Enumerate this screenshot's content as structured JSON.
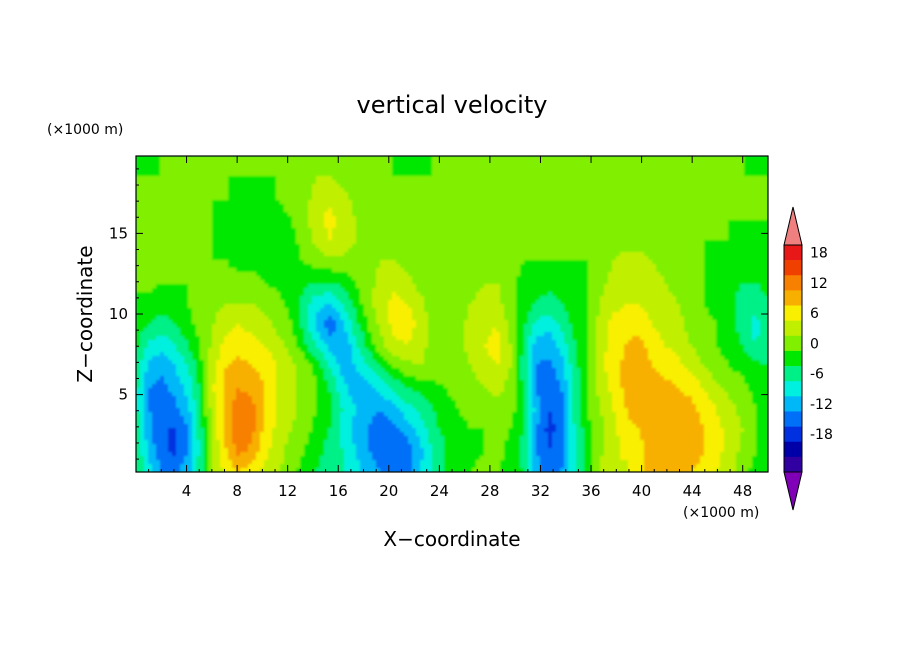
{
  "chart_data": {
    "type": "heatmap",
    "title": "vertical velocity",
    "xlabel": "X−coordinate",
    "ylabel": "Z−coordinate",
    "x_unit": "(×1000 m)",
    "y_unit": "(×1000 m)",
    "xlim": [
      0,
      50
    ],
    "ylim": [
      0.2,
      19.8
    ],
    "x_ticks": [
      4,
      8,
      12,
      16,
      20,
      24,
      28,
      32,
      36,
      40,
      44,
      48
    ],
    "y_ticks": [
      5,
      10,
      15
    ],
    "colorbar": {
      "labels": [
        18,
        12,
        6,
        0,
        -6,
        -12,
        -18
      ],
      "levels": [
        21,
        18,
        15,
        12,
        9,
        6,
        3,
        0,
        -3,
        -6,
        -9,
        -12,
        -15,
        -18,
        -21
      ],
      "colors": [
        "#f08080",
        "#e81818",
        "#f04000",
        "#f88000",
        "#f8b000",
        "#f8f000",
        "#c0f000",
        "#80f000",
        "#00e800",
        "#00f088",
        "#00f0e0",
        "#00b8f8",
        "#0070f8",
        "#0030e0",
        "#0000a8",
        "#3000a0",
        "#8000b8"
      ],
      "extend": "both"
    },
    "field": [
      [
        -2,
        -8,
        -12,
        -13,
        -10,
        -4,
        3,
        7,
        9,
        7,
        5,
        3,
        2,
        -2,
        -3,
        -4,
        -6,
        -8,
        -10,
        -12,
        -15,
        -13,
        -9,
        -6,
        -3,
        -2,
        0,
        1,
        0,
        -1,
        -3,
        -10,
        -14,
        -12,
        -6,
        -1,
        4,
        6,
        5,
        8,
        10,
        11,
        10,
        9,
        8,
        6,
        4,
        1,
        -1,
        -3
      ],
      [
        -3,
        -10,
        -14,
        -16,
        -12,
        -5,
        4,
        9,
        13,
        11,
        7,
        4,
        2,
        0,
        -2,
        -4,
        -6,
        -9,
        -12,
        -14,
        -15,
        -14,
        -10,
        -6,
        -3,
        -2,
        -1,
        0,
        1,
        -1,
        -4,
        -12,
        -15,
        -13,
        -6,
        -1,
        2,
        5,
        7,
        8,
        10,
        11,
        12,
        11,
        9,
        7,
        5,
        2,
        0,
        -2
      ],
      [
        -4,
        -11,
        -15,
        -15,
        -12,
        -4,
        4,
        10,
        15,
        13,
        8,
        5,
        3,
        1,
        -1,
        -3,
        -7,
        -10,
        -12,
        -14,
        -13,
        -11,
        -8,
        -4,
        -2,
        -1,
        0,
        0,
        1,
        0,
        -3,
        -12,
        -16,
        -14,
        -6,
        -1,
        2,
        5,
        8,
        9,
        11,
        12,
        12,
        11,
        9,
        7,
        5,
        3,
        0,
        -2
      ],
      [
        -5,
        -12,
        -14,
        -13,
        -10,
        -3,
        5,
        11,
        14,
        13,
        9,
        6,
        4,
        2,
        0,
        -2,
        -6,
        -9,
        -11,
        -12,
        -10,
        -7,
        -5,
        -3,
        -1,
        0,
        1,
        1,
        2,
        1,
        -2,
        -10,
        -15,
        -13,
        -5,
        0,
        3,
        6,
        9,
        11,
        12,
        12,
        11,
        10,
        8,
        6,
        4,
        2,
        0,
        -1
      ],
      [
        -5,
        -12,
        -13,
        -11,
        -8,
        -2,
        6,
        10,
        12,
        11,
        9,
        6,
        4,
        2,
        0,
        -3,
        -8,
        -11,
        -10,
        -8,
        -5,
        -3,
        -2,
        -1,
        0,
        1,
        2,
        3,
        4,
        2,
        -3,
        -12,
        -15,
        -12,
        -5,
        0,
        4,
        7,
        10,
        12,
        11,
        10,
        9,
        8,
        6,
        4,
        2,
        1,
        -1,
        -2
      ],
      [
        -4,
        -10,
        -11,
        -9,
        -6,
        -1,
        5,
        9,
        10,
        9,
        8,
        6,
        4,
        2,
        -1,
        -6,
        -10,
        -9,
        -6,
        -3,
        0,
        2,
        3,
        2,
        1,
        2,
        3,
        5,
        6,
        3,
        -4,
        -12,
        -13,
        -10,
        -4,
        0,
        5,
        8,
        10,
        11,
        9,
        8,
        7,
        5,
        3,
        1,
        0,
        -1,
        -2,
        -3
      ],
      [
        -2,
        -7,
        -8,
        -6,
        -3,
        0,
        4,
        7,
        8,
        7,
        6,
        4,
        2,
        -2,
        -6,
        -10,
        -12,
        -7,
        -2,
        2,
        5,
        6,
        4,
        2,
        1,
        2,
        4,
        6,
        7,
        3,
        -3,
        -10,
        -11,
        -8,
        -3,
        0,
        5,
        7,
        9,
        10,
        8,
        6,
        5,
        3,
        2,
        0,
        -1,
        -3,
        -6,
        -4
      ],
      [
        -1,
        -3,
        -4,
        -3,
        -1,
        1,
        3,
        5,
        6,
        5,
        4,
        2,
        0,
        -4,
        -10,
        -14,
        -10,
        -4,
        0,
        4,
        7,
        8,
        5,
        2,
        1,
        2,
        4,
        5,
        6,
        2,
        -2,
        -7,
        -8,
        -5,
        -2,
        0,
        4,
        7,
        8,
        8,
        6,
        5,
        4,
        2,
        1,
        0,
        -2,
        -4,
        -7,
        -5
      ],
      [
        0,
        -1,
        -2,
        -1,
        0,
        1,
        2,
        3,
        3,
        3,
        2,
        1,
        -1,
        -4,
        -8,
        -9,
        -6,
        -2,
        2,
        5,
        7,
        6,
        4,
        1,
        1,
        2,
        3,
        4,
        4,
        1,
        -1,
        -3,
        -4,
        -3,
        -1,
        0,
        3,
        5,
        6,
        6,
        5,
        4,
        3,
        1,
        0,
        -1,
        -2,
        -4,
        -5,
        -3
      ],
      [
        0,
        1,
        0,
        0,
        0,
        1,
        1,
        1,
        1,
        1,
        0,
        -1,
        -2,
        -2,
        -3,
        -3,
        -2,
        0,
        2,
        4,
        5,
        4,
        2,
        1,
        1,
        2,
        2,
        3,
        3,
        1,
        -1,
        -2,
        -2,
        -2,
        -1,
        0,
        2,
        4,
        5,
        5,
        4,
        3,
        2,
        1,
        0,
        -1,
        -2,
        -3,
        -3,
        -2
      ],
      [
        1,
        2,
        1,
        0,
        0,
        0,
        0,
        0,
        -1,
        -1,
        -1,
        -1,
        -1,
        0,
        1,
        2,
        2,
        1,
        2,
        3,
        3,
        2,
        1,
        1,
        1,
        1,
        1,
        2,
        2,
        1,
        0,
        0,
        0,
        0,
        0,
        0,
        1,
        3,
        4,
        4,
        3,
        2,
        1,
        0,
        0,
        -1,
        -1,
        -2,
        -2,
        -1
      ],
      [
        1,
        2,
        2,
        1,
        0,
        0,
        0,
        -1,
        -1,
        -2,
        -2,
        -2,
        -1,
        1,
        4,
        6,
        5,
        3,
        2,
        1,
        1,
        1,
        1,
        0,
        1,
        1,
        1,
        1,
        1,
        1,
        0,
        0,
        1,
        1,
        0,
        0,
        1,
        2,
        2,
        2,
        2,
        1,
        1,
        0,
        0,
        0,
        0,
        -1,
        -1,
        0
      ],
      [
        1,
        1,
        1,
        1,
        0,
        0,
        0,
        -1,
        -1,
        -2,
        -2,
        -1,
        0,
        2,
        5,
        7,
        5,
        3,
        2,
        1,
        1,
        1,
        1,
        1,
        1,
        0,
        0,
        1,
        1,
        1,
        1,
        1,
        1,
        1,
        1,
        1,
        1,
        1,
        1,
        1,
        1,
        1,
        1,
        0,
        0,
        0,
        0,
        0,
        0,
        0
      ],
      [
        0,
        1,
        1,
        0,
        0,
        0,
        0,
        0,
        -1,
        -1,
        -1,
        0,
        1,
        2,
        4,
        5,
        4,
        2,
        1,
        1,
        0,
        0,
        0,
        0,
        0,
        0,
        0,
        0,
        1,
        1,
        1,
        1,
        1,
        1,
        1,
        1,
        2,
        2,
        1,
        1,
        1,
        0,
        0,
        0,
        0,
        0,
        0,
        0,
        0,
        0
      ],
      [
        0,
        0,
        0,
        0,
        0,
        0,
        0,
        0,
        0,
        0,
        0,
        0,
        1,
        2,
        3,
        3,
        2,
        1,
        1,
        0,
        0,
        0,
        0,
        0,
        0,
        0,
        0,
        0,
        0,
        1,
        1,
        1,
        1,
        1,
        1,
        1,
        1,
        1,
        1,
        1,
        0,
        0,
        0,
        0,
        0,
        0,
        0,
        0,
        0,
        0
      ],
      [
        -1,
        -1,
        0,
        0,
        0,
        0,
        0,
        0,
        0,
        0,
        0,
        0,
        0,
        1,
        1,
        1,
        1,
        0,
        0,
        0,
        0,
        -1,
        -1,
        0,
        0,
        0,
        0,
        0,
        0,
        0,
        1,
        1,
        1,
        1,
        1,
        1,
        1,
        1,
        0,
        0,
        0,
        0,
        0,
        0,
        0,
        0,
        0,
        0,
        -1,
        -1
      ]
    ]
  }
}
